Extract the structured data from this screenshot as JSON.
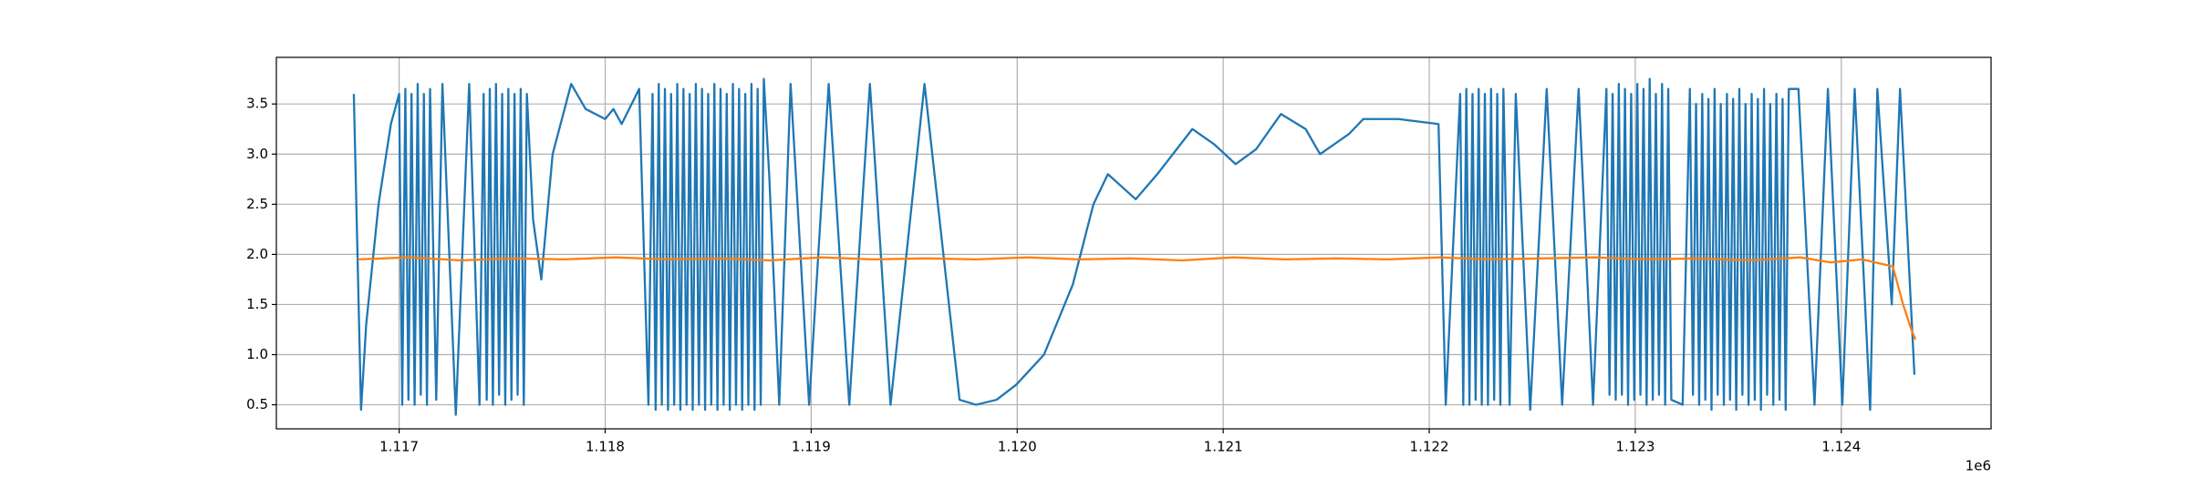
{
  "chart_data": {
    "type": "line",
    "grid": true,
    "x_offset_label": "1e6",
    "xlim": [
      1116404,
      1124727
    ],
    "ylim": [
      0.26,
      3.965
    ],
    "xticks": [
      {
        "value": 1117000,
        "label": "1.117"
      },
      {
        "value": 1118000,
        "label": "1.118"
      },
      {
        "value": 1119000,
        "label": "1.119"
      },
      {
        "value": 1120000,
        "label": "1.120"
      },
      {
        "value": 1121000,
        "label": "1.121"
      },
      {
        "value": 1122000,
        "label": "1.122"
      },
      {
        "value": 1123000,
        "label": "1.123"
      },
      {
        "value": 1124000,
        "label": "1.124"
      }
    ],
    "yticks": [
      0.5,
      {
        "value": 1,
        "label": "1.0"
      },
      1.5,
      {
        "value": 2,
        "label": "2.0"
      },
      2.5,
      {
        "value": 3,
        "label": "3.0"
      },
      3.5
    ],
    "series": [
      {
        "color": "#1f77b4",
        "x": [
          1116780,
          1116815,
          1116840,
          1116900,
          1116960,
          1117000,
          1117015,
          1117030,
          1117045,
          1117060,
          1117075,
          1117090,
          1117105,
          1117120,
          1117135,
          1117150,
          1117180,
          1117210,
          1117275,
          1117340,
          1117390,
          1117410,
          1117425,
          1117440,
          1117455,
          1117470,
          1117485,
          1117500,
          1117515,
          1117530,
          1117545,
          1117560,
          1117575,
          1117590,
          1117605,
          1117620,
          1117650,
          1117690,
          1117745,
          1117835,
          1117905,
          1118000,
          1118040,
          1118080,
          1118165,
          1118210,
          1118230,
          1118245,
          1118260,
          1118275,
          1118290,
          1118305,
          1118320,
          1118335,
          1118350,
          1118365,
          1118380,
          1118395,
          1118410,
          1118425,
          1118440,
          1118455,
          1118470,
          1118485,
          1118500,
          1118515,
          1118530,
          1118545,
          1118560,
          1118575,
          1118590,
          1118605,
          1118620,
          1118635,
          1118650,
          1118665,
          1118680,
          1118695,
          1118710,
          1118725,
          1118740,
          1118755,
          1118770,
          1118796,
          1118845,
          1118900,
          1118990,
          1119085,
          1119185,
          1119285,
          1119385,
          1119550,
          1119720,
          1119800,
          1119900,
          1119995,
          1120130,
          1120270,
          1120370,
          1120440,
          1120575,
          1120680,
          1120850,
          1120955,
          1121060,
          1121160,
          1121280,
          1121400,
          1121470,
          1121610,
          1121680,
          1121850,
          1122045,
          1122080,
          1122150,
          1122165,
          1122180,
          1122195,
          1122210,
          1122225,
          1122240,
          1122255,
          1122270,
          1122285,
          1122300,
          1122315,
          1122330,
          1122345,
          1122360,
          1122390,
          1122420,
          1122490,
          1122570,
          1122645,
          1122725,
          1122795,
          1122860,
          1122875,
          1122890,
          1122905,
          1122920,
          1122935,
          1122950,
          1122965,
          1122980,
          1122995,
          1123010,
          1123025,
          1123040,
          1123055,
          1123070,
          1123085,
          1123100,
          1123115,
          1123130,
          1123145,
          1123160,
          1123175,
          1123230,
          1123265,
          1123280,
          1123295,
          1123310,
          1123325,
          1123340,
          1123355,
          1123370,
          1123385,
          1123400,
          1123415,
          1123430,
          1123445,
          1123460,
          1123475,
          1123490,
          1123505,
          1123520,
          1123535,
          1123550,
          1123565,
          1123580,
          1123595,
          1123610,
          1123625,
          1123640,
          1123655,
          1123670,
          1123685,
          1123700,
          1123715,
          1123730,
          1123745,
          1123792,
          1123870,
          1123935,
          1124005,
          1124065,
          1124140,
          1124175,
          1124245,
          1124285,
          1124355
        ],
        "values": [
          3.6,
          0.45,
          1.3,
          2.5,
          3.3,
          3.6,
          0.5,
          3.65,
          0.55,
          3.6,
          0.5,
          3.7,
          0.6,
          3.6,
          0.5,
          3.65,
          0.55,
          3.7,
          0.4,
          3.7,
          0.5,
          3.6,
          0.55,
          3.65,
          0.5,
          3.7,
          0.6,
          3.6,
          0.5,
          3.65,
          0.55,
          3.6,
          0.6,
          3.65,
          0.5,
          3.6,
          2.35,
          1.75,
          3.0,
          3.7,
          3.45,
          3.35,
          3.45,
          3.3,
          3.65,
          0.5,
          3.6,
          0.45,
          3.7,
          0.5,
          3.65,
          0.45,
          3.6,
          0.5,
          3.7,
          0.45,
          3.65,
          0.5,
          3.6,
          0.45,
          3.7,
          0.5,
          3.65,
          0.45,
          3.6,
          0.5,
          3.7,
          0.45,
          3.65,
          0.5,
          3.6,
          0.45,
          3.7,
          0.5,
          3.65,
          0.45,
          3.6,
          0.5,
          3.7,
          0.45,
          3.65,
          0.5,
          3.75,
          2.8,
          0.5,
          3.7,
          0.5,
          3.7,
          0.5,
          3.7,
          0.5,
          3.7,
          0.55,
          0.5,
          0.55,
          0.7,
          1.0,
          1.7,
          2.5,
          2.8,
          2.55,
          2.8,
          3.25,
          3.1,
          2.9,
          3.05,
          3.4,
          3.25,
          3.0,
          3.2,
          3.35,
          3.35,
          3.3,
          0.5,
          3.6,
          0.5,
          3.65,
          0.5,
          3.6,
          0.55,
          3.65,
          0.5,
          3.6,
          0.5,
          3.65,
          0.55,
          3.6,
          0.5,
          3.65,
          0.5,
          3.6,
          0.45,
          3.65,
          0.5,
          3.65,
          0.5,
          3.65,
          0.6,
          3.6,
          0.55,
          3.7,
          0.6,
          3.65,
          0.5,
          3.6,
          0.55,
          3.7,
          0.6,
          3.65,
          0.5,
          3.75,
          0.55,
          3.6,
          0.6,
          3.7,
          0.5,
          3.65,
          0.55,
          0.5,
          3.65,
          0.6,
          3.5,
          0.5,
          3.6,
          0.55,
          3.55,
          0.45,
          3.65,
          0.6,
          3.5,
          0.5,
          3.6,
          0.55,
          3.55,
          0.45,
          3.65,
          0.6,
          3.5,
          0.5,
          3.6,
          0.55,
          3.55,
          0.45,
          3.65,
          0.6,
          3.5,
          0.5,
          3.6,
          0.55,
          3.55,
          0.45,
          3.65,
          3.65,
          0.5,
          3.65,
          0.5,
          3.65,
          0.45,
          3.65,
          1.5,
          3.65,
          0.8
        ]
      },
      {
        "color": "#ff7f0e",
        "x": [
          1116800,
          1117050,
          1117300,
          1117550,
          1117800,
          1118050,
          1118300,
          1118550,
          1118800,
          1119050,
          1119300,
          1119550,
          1119800,
          1120050,
          1120300,
          1120550,
          1120800,
          1121050,
          1121300,
          1121550,
          1121800,
          1122050,
          1122300,
          1122550,
          1122800,
          1123050,
          1123300,
          1123550,
          1123800,
          1123950,
          1124100,
          1124250,
          1124300,
          1124340,
          1124360
        ],
        "values": [
          1.95,
          1.97,
          1.94,
          1.96,
          1.95,
          1.97,
          1.95,
          1.96,
          1.94,
          1.97,
          1.95,
          1.96,
          1.95,
          1.97,
          1.95,
          1.96,
          1.94,
          1.97,
          1.95,
          1.96,
          1.95,
          1.97,
          1.95,
          1.96,
          1.97,
          1.95,
          1.96,
          1.94,
          1.97,
          1.92,
          1.95,
          1.88,
          1.5,
          1.25,
          1.15
        ]
      }
    ]
  }
}
